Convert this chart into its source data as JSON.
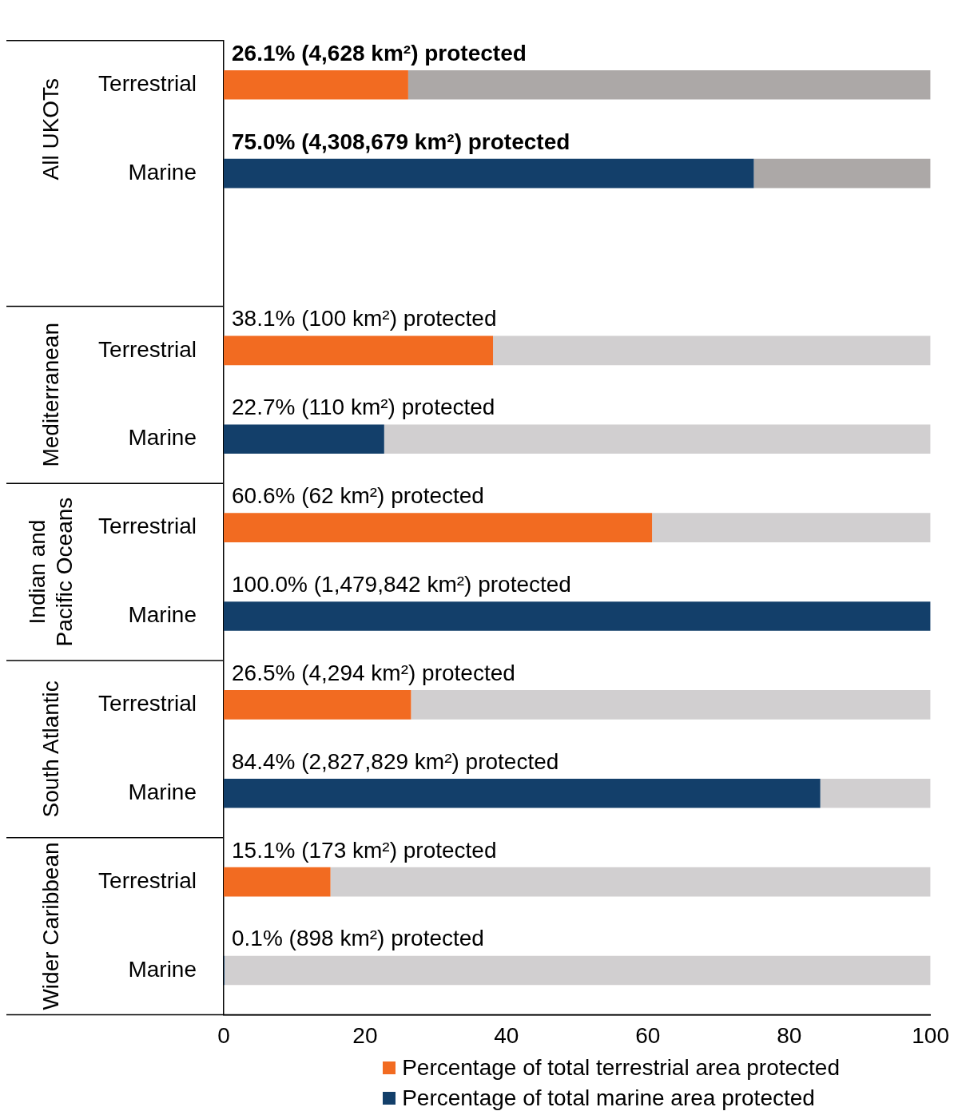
{
  "chart_data": {
    "type": "bar",
    "orientation": "horizontal",
    "stacked": true,
    "categories": [
      "Terrestrial",
      "Marine",
      null,
      "Terrestrial",
      "Marine",
      "Terrestrial",
      "Marine",
      "Terrestrial",
      "Marine",
      "Terrestrial",
      "Marine"
    ],
    "series": [
      {
        "name": "Percentage of total terrestrial area protected",
        "color": "#f26b21",
        "values": [
          26.1,
          null,
          null,
          38.1,
          null,
          60.6,
          null,
          26.5,
          null,
          15.1,
          null
        ],
        "value_labels": [
          "26.1% (4,628 km²) protected",
          null,
          null,
          "38.1% (100 km²) protected",
          null,
          "60.6% (62 km²) protected",
          null,
          "26.5% (4,294 km²) protected",
          null,
          "15.1% (173 km²) protected",
          null
        ]
      },
      {
        "name": "Percentage of total marine area protected",
        "color": "#133f6a",
        "values": [
          null,
          75.0,
          null,
          null,
          22.7,
          null,
          100.0,
          null,
          84.4,
          null,
          0.1
        ],
        "value_labels": [
          null,
          "75.0% (4,308,679 km²) protected",
          null,
          null,
          "22.7% (110 km²) protected",
          null,
          "100.0% (1,479,842 km²) protected",
          null,
          "84.4% (2,827,829 km²) protected",
          null,
          "0.1% (898 km²) protected"
        ]
      },
      {
        "colors": [
          "#aca8a7",
          "#aca8a7",
          "#d1cfd0",
          "#d1cfd0",
          "#d1cfd0",
          "#d1cfd0",
          "#d1cfd0",
          "#d1cfd0",
          "#d1cfd0",
          "#d1cfd0",
          "#d1cfd0"
        ],
        "values": [
          73.9,
          25.0,
          null,
          61.9,
          77.3,
          39.4,
          null,
          73.5,
          15.6,
          84.9,
          99.9
        ]
      }
    ],
    "xlim": [
      0,
      100
    ],
    "xticks": [
      0,
      20,
      40,
      60,
      80,
      100
    ],
    "legend": "bottom right",
    "annotations": [
      "All UKOTs",
      "Mediterranean",
      "Indian and Pacific Oceans",
      "South Atlantic",
      "Wider Caribbean"
    ]
  }
}
